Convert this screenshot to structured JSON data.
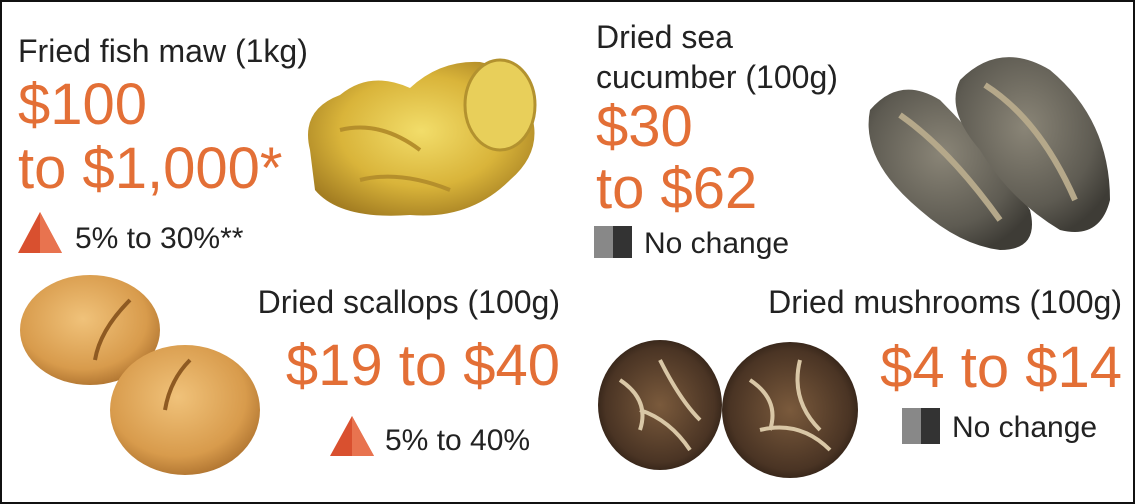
{
  "items": [
    {
      "name": [
        "Fried fish maw (1kg)"
      ],
      "price": [
        "$100",
        "to $1,000*"
      ],
      "change": "5% to 30%**"
    },
    {
      "name": [
        "Dried sea",
        "cucumber (100g)"
      ],
      "price": [
        "$30",
        "to $62"
      ],
      "change": "No change"
    },
    {
      "name": [
        "Dried scallops (100g)"
      ],
      "price": [
        "$19 to $40"
      ],
      "change": "5% to 40%"
    },
    {
      "name": [
        "Dried mushrooms (100g)"
      ],
      "price": [
        "$4 to $14"
      ],
      "change": "No change"
    }
  ]
}
